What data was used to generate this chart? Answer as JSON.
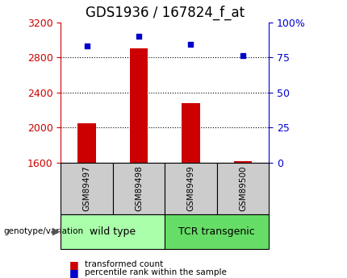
{
  "title": "GDS1936 / 167824_f_at",
  "samples": [
    "GSM89497",
    "GSM89498",
    "GSM89499",
    "GSM89500"
  ],
  "groups": [
    {
      "label": "wild type",
      "indices": [
        0,
        1
      ],
      "color": "#aaffaa"
    },
    {
      "label": "TCR transgenic",
      "indices": [
        2,
        3
      ],
      "color": "#66dd66"
    }
  ],
  "transformed_counts": [
    2050,
    2900,
    2280,
    1615
  ],
  "percentile_ranks": [
    83,
    90,
    84,
    76
  ],
  "bar_baseline": 1600,
  "ylim_left": [
    1600,
    3200
  ],
  "ylim_right": [
    0,
    100
  ],
  "yticks_left": [
    1600,
    2000,
    2400,
    2800,
    3200
  ],
  "yticks_right": [
    0,
    25,
    50,
    75,
    100
  ],
  "yticklabels_right": [
    "0",
    "25",
    "50",
    "75",
    "100%"
  ],
  "bar_color": "#cc0000",
  "dot_color": "#0000cc",
  "grid_lines_pct": [
    25,
    50,
    75
  ],
  "left_axis_color": "#cc0000",
  "right_axis_color": "#0000cc",
  "xlabel_bottom": "genotype/variation",
  "sample_box_color": "#cccccc",
  "group_label_fontsize": 9,
  "tick_fontsize": 9,
  "title_fontsize": 12,
  "bar_width": 0.35
}
